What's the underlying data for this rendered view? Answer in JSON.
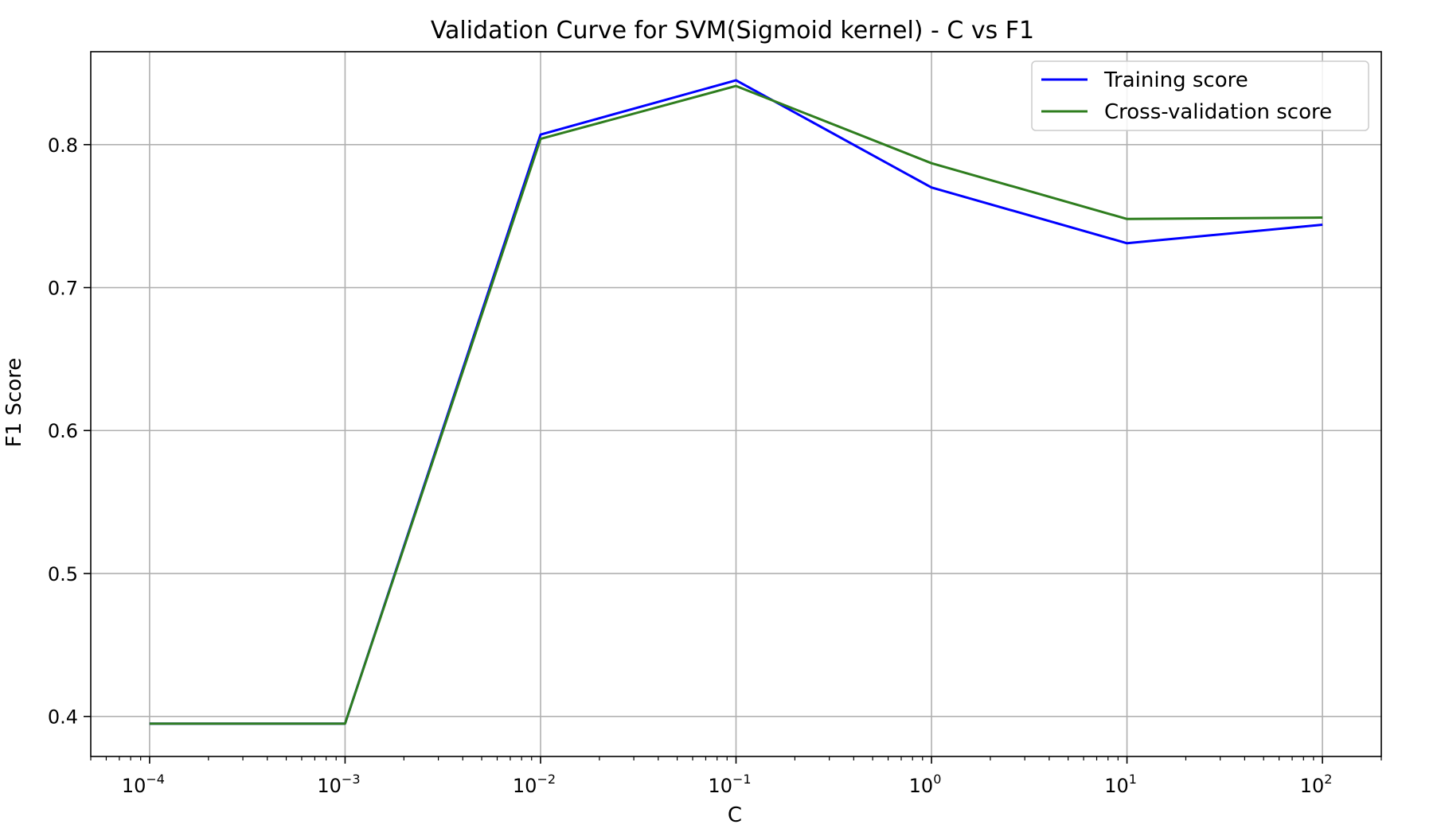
{
  "chart_data": {
    "type": "line",
    "title": "Validation Curve for SVM(Sigmoid kernel) - C vs F1",
    "xlabel": "C",
    "ylabel": "F1 Score",
    "xscale": "log",
    "x": [
      0.0001,
      0.001,
      0.01,
      0.1,
      1,
      10,
      100
    ],
    "xlim": [
      5e-05,
      200
    ],
    "ylim": [
      0.372,
      0.865
    ],
    "x_ticks": [
      {
        "value": 0.0001,
        "base": "10",
        "exp": "−4"
      },
      {
        "value": 0.001,
        "base": "10",
        "exp": "−3"
      },
      {
        "value": 0.01,
        "base": "10",
        "exp": "−2"
      },
      {
        "value": 0.1,
        "base": "10",
        "exp": "−1"
      },
      {
        "value": 1,
        "base": "10",
        "exp": "0"
      },
      {
        "value": 10,
        "base": "10",
        "exp": "1"
      },
      {
        "value": 100,
        "base": "10",
        "exp": "2"
      }
    ],
    "y_ticks": [
      {
        "value": 0.4,
        "label": "0.4"
      },
      {
        "value": 0.5,
        "label": "0.5"
      },
      {
        "value": 0.6,
        "label": "0.6"
      },
      {
        "value": 0.7,
        "label": "0.7"
      },
      {
        "value": 0.8,
        "label": "0.8"
      }
    ],
    "grid": true,
    "legend_position": "top-right",
    "series": [
      {
        "name": "Training score",
        "color": "#0000ff",
        "values": [
          0.395,
          0.395,
          0.807,
          0.845,
          0.77,
          0.731,
          0.744
        ]
      },
      {
        "name": "Cross-validation score",
        "color": "#2e7d1e",
        "values": [
          0.395,
          0.395,
          0.804,
          0.841,
          0.787,
          0.748,
          0.749
        ]
      }
    ]
  }
}
